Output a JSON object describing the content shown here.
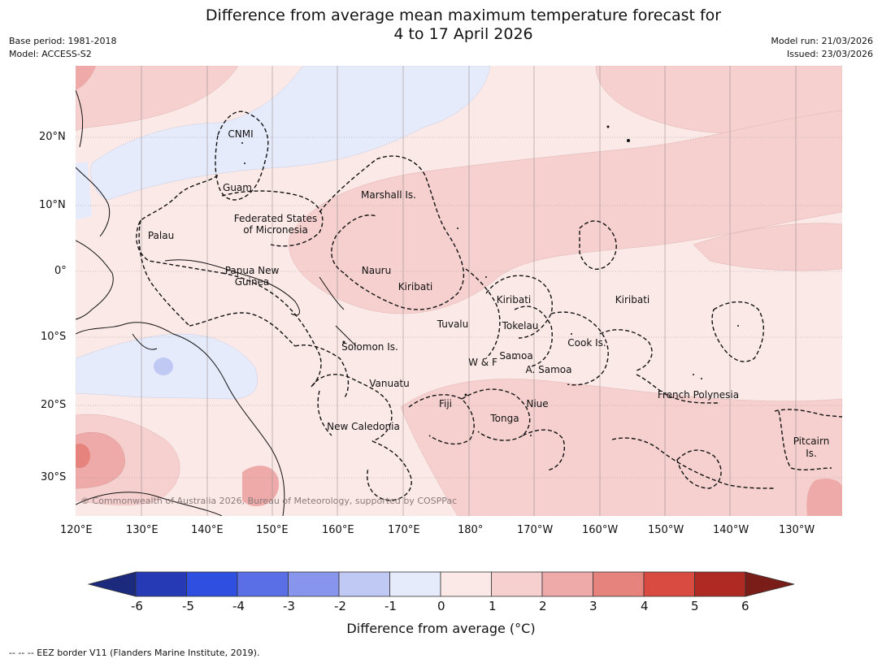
{
  "title": {
    "line1": "Difference from average mean maximum temperature forecast for",
    "line2": "4 to 17 April 2026"
  },
  "meta": {
    "base_period": "Base period: 1981-2018",
    "model": "Model: ACCESS-S2",
    "model_run": "Model run: 21/03/2026",
    "issued": "Issued: 23/03/2026"
  },
  "map": {
    "lat_ticks": [
      "20°N",
      "10°N",
      "0°",
      "10°S",
      "20°S",
      "30°S"
    ],
    "lon_ticks": [
      "120°E",
      "130°E",
      "140°E",
      "150°E",
      "160°E",
      "170°E",
      "180°",
      "170°W",
      "160°W",
      "150°W",
      "140°W",
      "130°W"
    ],
    "places": {
      "cnmi": "CNMI",
      "guam": "Guam",
      "marshall": "Marshall Is.",
      "fsm_1": "Federated States",
      "fsm_2": "of Micronesia",
      "palau": "Palau",
      "png_1": "Papua New",
      "png_2": "Guinea",
      "nauru": "Nauru",
      "kiribati_west": "Kiribati",
      "kiribati_central": "Kiribati",
      "kiribati_east": "Kiribati",
      "tuvalu": "Tuvalu",
      "tokelau": "Tokelau",
      "cook": "Cook Is.",
      "solomon": "Solomon Is.",
      "wf": "W & F",
      "samoa": "Samoa",
      "asamoa": "A. Samoa",
      "vanuatu": "Vanuatu",
      "fiji": "Fiji",
      "niue": "Niue",
      "tonga": "Tonga",
      "new_caledonia": "New Caledonia",
      "french_polynesia": "French Polynesia",
      "pitcairn_1": "Pitcairn",
      "pitcairn_2": "Is."
    },
    "credit": "© Commonwealth of Australia 2026, Bureau of Meteorology, supported by COSPPac"
  },
  "colorbar": {
    "ticks": [
      "-6",
      "-5",
      "-4",
      "-3",
      "-2",
      "-1",
      "0",
      "1",
      "2",
      "3",
      "4",
      "5",
      "6"
    ],
    "colors": [
      "#263ab5",
      "#2f4fe0",
      "#5a6fe6",
      "#8796ec",
      "#c0c8f4",
      "#e6ebfc",
      "#fbe9e7",
      "#f5d0cf",
      "#edaaa8",
      "#e6837d",
      "#d94a41",
      "#ae2a23"
    ],
    "under_color": "#1b2a7c",
    "over_color": "#7a1d19",
    "label": "Difference from average (°C)"
  },
  "footnote": "--  --  -- EEZ border V11 (Flanders Marine Institute, 2019)."
}
